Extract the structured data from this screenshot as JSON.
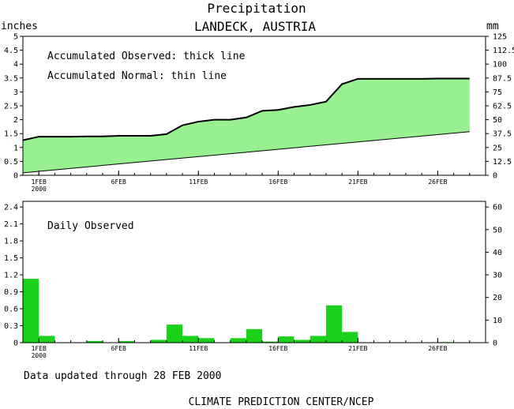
{
  "header": {
    "title": "Precipitation",
    "subtitle": "LANDECK, AUSTRIA",
    "left_unit": "inches",
    "right_unit": "mm"
  },
  "legend": {
    "observed_note": "Accumulated Observed: thick line",
    "normal_note": "Accumulated Normal: thin line",
    "daily_note": "Daily Observed"
  },
  "footer": {
    "updated": "Data updated through 28 FEB 2000",
    "credit": "CLIMATE PREDICTION CENTER/NCEP"
  },
  "colors": {
    "fill_area": "#98f090",
    "bars": "#19d219",
    "line": "#000000",
    "frame": "#000000",
    "background": "#ffffff"
  },
  "x_axis": {
    "ticks": [
      {
        "day": 1,
        "label": "1FEB"
      },
      {
        "day": 6,
        "label": "6FEB"
      },
      {
        "day": 11,
        "label": "11FEB"
      },
      {
        "day": 16,
        "label": "16FEB"
      },
      {
        "day": 21,
        "label": "21FEB"
      },
      {
        "day": 26,
        "label": "26FEB"
      }
    ],
    "year_label": "2000"
  },
  "chart_data": [
    {
      "type": "area",
      "title": "Precipitation",
      "subtitle": "LANDECK, AUSTRIA",
      "ylabel_left": "inches",
      "ylabel_right": "mm",
      "xlim": [
        0,
        29
      ],
      "ylim": [
        0,
        5
      ],
      "ylim_right": [
        0,
        125
      ],
      "yticks_left": [
        "0",
        "0.5",
        "1",
        "1.5",
        "2",
        "2.5",
        "3",
        "3.5",
        "4",
        "4.5",
        "5"
      ],
      "yticks_right": [
        "0",
        "12.5",
        "25",
        "37.5",
        "50",
        "62.5",
        "75",
        "87.5",
        "100",
        "112.5",
        "125"
      ],
      "observed": {
        "x": [
          0,
          1,
          2,
          3,
          4,
          5,
          6,
          7,
          8,
          9,
          10,
          11,
          12,
          13,
          14,
          15,
          16,
          17,
          18,
          19,
          20,
          21,
          22,
          23,
          24,
          25,
          26,
          27,
          28
        ],
        "y": [
          1.26,
          1.39,
          1.39,
          1.39,
          1.4,
          1.4,
          1.42,
          1.42,
          1.42,
          1.48,
          1.8,
          1.93,
          2.0,
          2.0,
          2.08,
          2.32,
          2.35,
          2.46,
          2.53,
          2.65,
          3.28,
          3.47,
          3.47,
          3.47,
          3.47,
          3.47,
          3.48,
          3.48,
          3.48
        ]
      },
      "normal": {
        "x": [
          0,
          28
        ],
        "y": [
          0.09,
          1.57
        ]
      }
    },
    {
      "type": "bar",
      "title": "Daily Observed",
      "xlim": [
        0,
        29
      ],
      "ylim": [
        0,
        2.5
      ],
      "ylim_right": [
        0,
        62.5
      ],
      "yticks_left": [
        "0",
        "0.3",
        "0.6",
        "0.9",
        "1.2",
        "1.5",
        "1.8",
        "2.1",
        "2.4"
      ],
      "yticks_right": [
        "0",
        "10",
        "20",
        "30",
        "40",
        "50",
        "60"
      ],
      "days": [
        0,
        1,
        4,
        6,
        8,
        9,
        10,
        11,
        13,
        14,
        15,
        16,
        17,
        18,
        19,
        20,
        26
      ],
      "values": [
        1.13,
        0.12,
        0.03,
        0.03,
        0.05,
        0.32,
        0.12,
        0.08,
        0.08,
        0.24,
        0.02,
        0.11,
        0.05,
        0.12,
        0.66,
        0.19,
        0.01
      ]
    }
  ]
}
